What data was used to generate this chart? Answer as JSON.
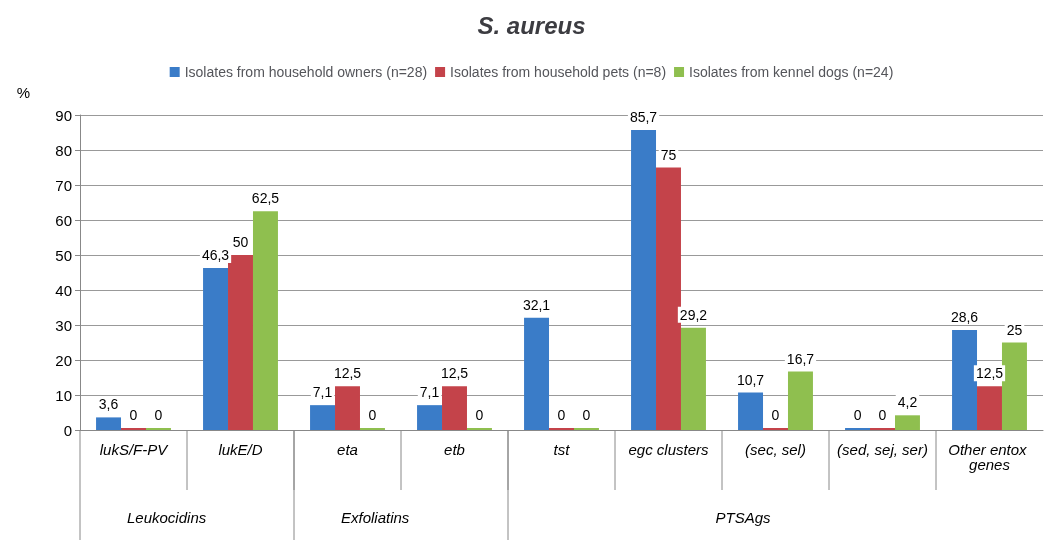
{
  "chart_data": {
    "type": "bar",
    "title": "S. aureus",
    "ylabel": "%",
    "categories": [
      "lukS/F-PV",
      "lukE/D",
      "eta",
      "etb",
      "tst",
      "egc clusters",
      "(sec, sel)",
      "(sed, sej, ser)",
      "Other entox genes"
    ],
    "series": [
      {
        "name": "Isolates from household owners (n=28)",
        "color": "#3a7cc8",
        "values": [
          3.6,
          46.3,
          7.1,
          7.1,
          32.1,
          85.7,
          10.7,
          0,
          28.6
        ],
        "value_labels": [
          "3,6",
          "46,3",
          "7,1",
          "7,1",
          "32,1",
          "85,7",
          "10,7",
          "0",
          "28,6"
        ]
      },
      {
        "name": "Isolates from household pets (n=8)",
        "color": "#c4434a",
        "values": [
          0,
          50,
          12.5,
          12.5,
          0,
          75,
          0,
          0,
          12.5
        ],
        "value_labels": [
          "0",
          "50",
          "12,5",
          "12,5",
          "0",
          "75",
          "0",
          "0",
          "12,5"
        ]
      },
      {
        "name": "Isolates from kennel dogs (n=24)",
        "color": "#8fbf4f",
        "values": [
          0,
          62.5,
          0,
          0,
          0,
          29.2,
          16.7,
          4.2,
          25
        ],
        "value_labels": [
          "0",
          "62,5",
          "0",
          "0",
          "0",
          "29,2",
          "16,7",
          "4,2",
          "25"
        ]
      }
    ],
    "ylim": [
      0,
      90
    ],
    "yticks": [
      0,
      10,
      20,
      30,
      40,
      50,
      60,
      70,
      80,
      90
    ],
    "grid": "y",
    "legend": "top",
    "annotations": [
      "Leukocidins",
      "Exfoliatins",
      "PTSAgs"
    ]
  }
}
